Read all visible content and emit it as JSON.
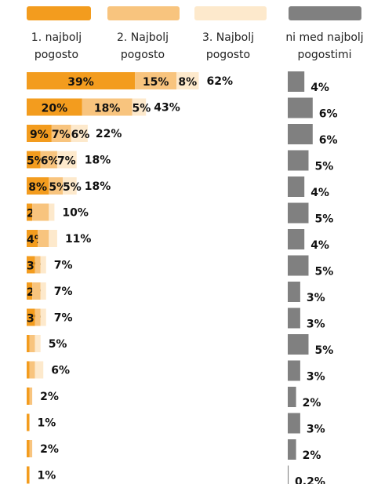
{
  "chart_data": {
    "type": "bar",
    "orientation": "horizontal",
    "stacked": true,
    "series": [
      {
        "name": "1. najbolj pogosto",
        "color": "#f39c1e",
        "values": [
          39,
          20,
          9,
          5,
          8,
          2,
          4,
          3,
          2,
          3,
          1,
          1,
          1,
          1,
          1,
          1
        ],
        "value_labels": [
          "39%",
          "20%",
          "9%",
          "5%",
          "8%",
          "2%",
          "4%",
          "3%",
          "2%",
          "3%",
          null,
          null,
          null,
          null,
          null,
          null
        ]
      },
      {
        "name": "2. Najbolj pogosto",
        "color": "#f8c47e",
        "values": [
          15,
          18,
          7,
          6,
          5,
          6,
          4,
          2,
          3,
          2,
          2,
          2,
          1,
          0,
          1,
          0
        ],
        "value_labels": [
          "15%",
          "18%",
          "7%",
          "6%",
          "5%",
          null,
          null,
          null,
          null,
          null,
          null,
          null,
          null,
          null,
          null,
          null
        ]
      },
      {
        "name": "3. Najbolj pogosto",
        "color": "#fde9cc",
        "values": [
          8,
          5,
          6,
          7,
          5,
          2,
          3,
          2,
          2,
          2,
          2,
          3,
          0,
          0,
          0,
          0
        ],
        "value_labels": [
          "8%",
          "5%",
          "6%",
          "7%",
          "5%",
          null,
          null,
          null,
          null,
          null,
          null,
          null,
          null,
          null,
          null,
          null
        ]
      }
    ],
    "totals": {
      "values": [
        62,
        43,
        22,
        18,
        18,
        10,
        11,
        7,
        7,
        7,
        5,
        6,
        2,
        1,
        2,
        1
      ],
      "value_labels": [
        "62%",
        "43%",
        "22%",
        "18%",
        "18%",
        "10%",
        "11%",
        "7%",
        "7%",
        "7%",
        "5%",
        "6%",
        "2%",
        "1%",
        "2%",
        "1%"
      ]
    },
    "comparison": {
      "name": "ni med najbolj pogostimi",
      "color": "#808080",
      "values": [
        4,
        6,
        6,
        5,
        4,
        5,
        4,
        5,
        3,
        3,
        5,
        3,
        2,
        3,
        2,
        0.2
      ],
      "value_labels": [
        "4%",
        "6%",
        "6%",
        "5%",
        "4%",
        "5%",
        "4%",
        "5%",
        "3%",
        "3%",
        "5%",
        "3%",
        "2%",
        "3%",
        "2%",
        "0.2%"
      ]
    }
  }
}
